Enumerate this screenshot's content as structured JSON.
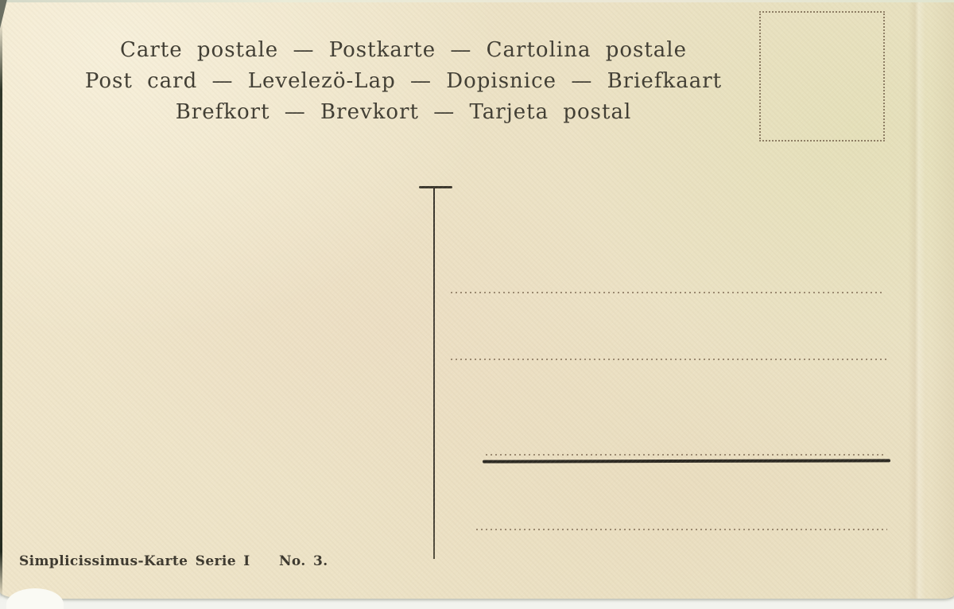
{
  "header": {
    "line1": "Carte postale — Postkarte — Cartolina postale",
    "line2": "Post card — Levelezö-Lap — Dopisnice — Briefkaart",
    "line3": "Brefkort — Brevkort — Tarjeta postal"
  },
  "imprint": {
    "series": "Simplicissimus-Karte Serie I",
    "number": "No. 3."
  },
  "colors": {
    "card_background": "#ece2c6",
    "ink": "#3f3c32",
    "address_solid_line": "#2c2922",
    "dotted_line": "#8d7a62",
    "stamp_box_border": "#84735a",
    "scan_background": "#dde3d5"
  }
}
